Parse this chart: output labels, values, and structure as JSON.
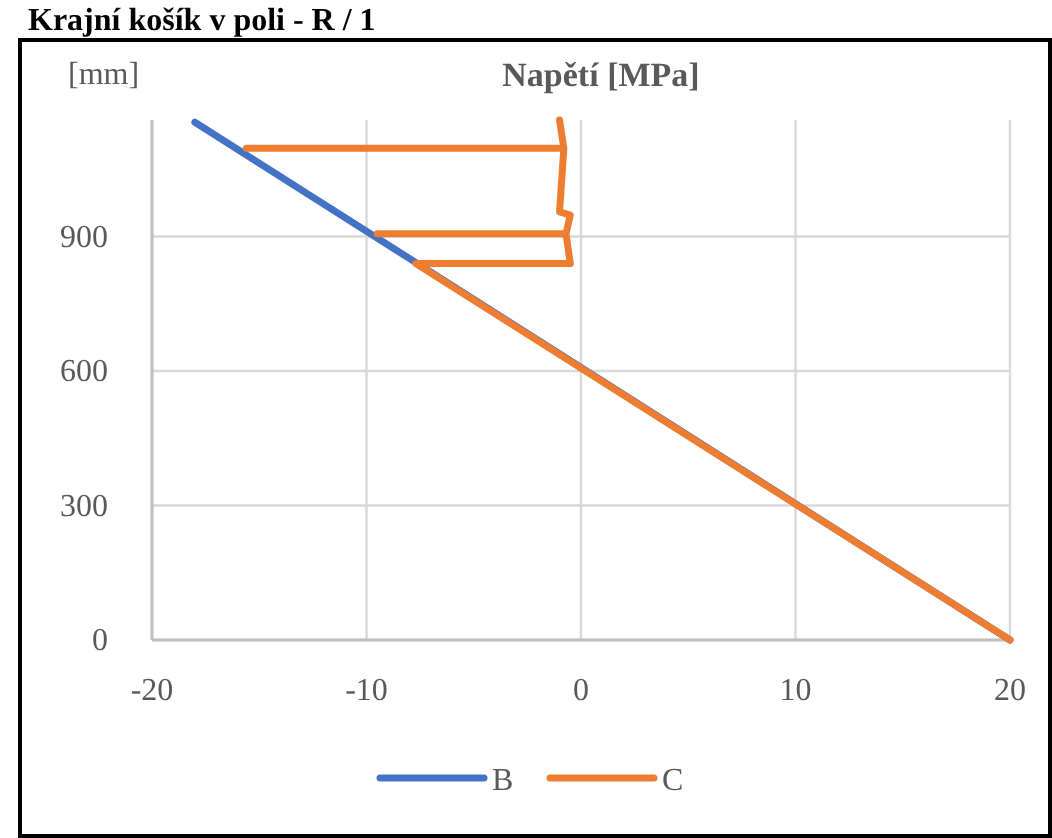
{
  "chart_data": {
    "type": "line",
    "title": "Krajní košík v poli - R / 1",
    "xlabel": "Napětí [MPa]",
    "ylabel": "[mm]",
    "xlim": [
      -20,
      20
    ],
    "xticks": [
      -20,
      -10,
      0,
      10,
      20
    ],
    "ylim": [
      0,
      1160
    ],
    "yticks": [
      0,
      300,
      600,
      900
    ],
    "grid": true,
    "legend": "bottom",
    "marker": "none",
    "line_style": "solid",
    "series": [
      {
        "name": "B",
        "color": "#4472c4",
        "x": [
          20,
          -18
        ],
        "values": [
          0,
          1155
        ]
      },
      {
        "name": "C",
        "color": "#ed7d31",
        "x": [
          20,
          -7.7,
          -0.5,
          -0.7,
          -9.5,
          -0.7,
          -0.5,
          -1.0,
          -0.8,
          -15.6,
          -0.8,
          -1.0
        ],
        "values": [
          0,
          840,
          840,
          906,
          906,
          906,
          948,
          955,
          1097,
          1097,
          1097,
          1160
        ]
      }
    ]
  }
}
